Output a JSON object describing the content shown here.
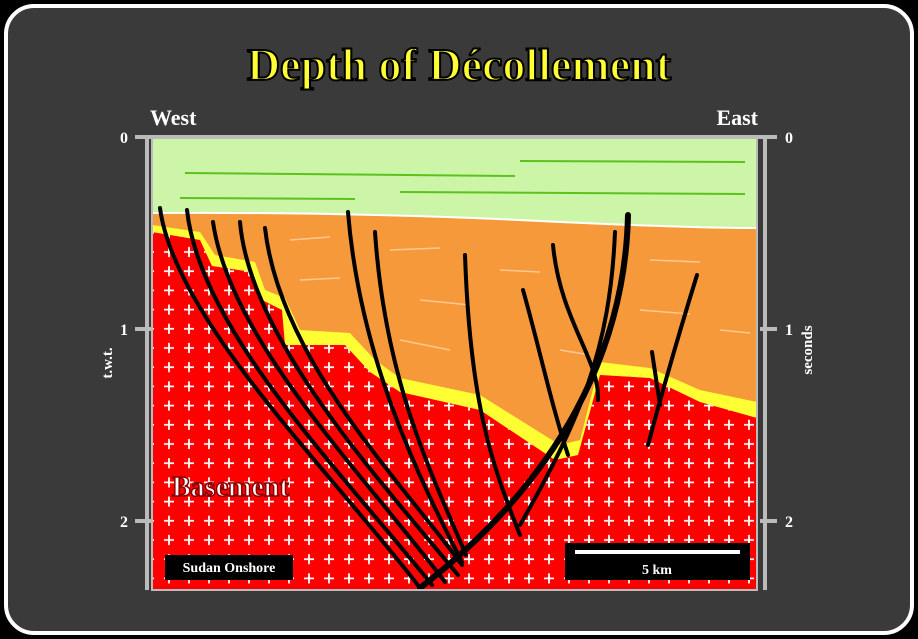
{
  "title": "Depth of Décollement",
  "directions": {
    "west": "West",
    "east": "East"
  },
  "axis": {
    "ticks": [
      0,
      1,
      2
    ],
    "left_label": "t.w.t.",
    "right_label": "seconds"
  },
  "labels": {
    "basement": "Basement",
    "location": "Sudan Onshore",
    "scale_bar": "5 km"
  }
}
